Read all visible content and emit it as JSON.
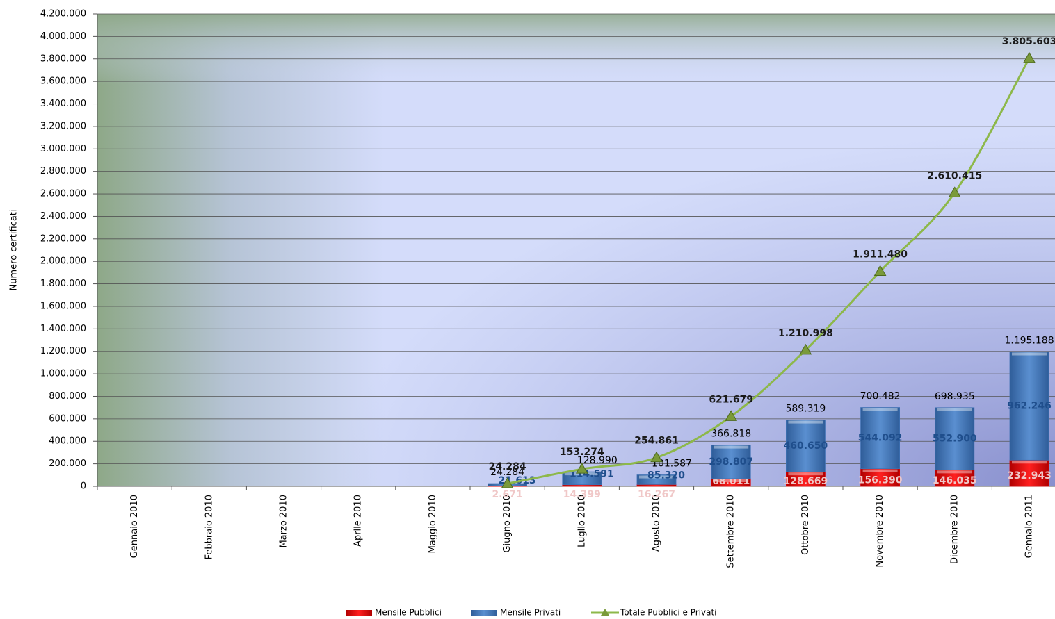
{
  "chart_data": {
    "type": "bar",
    "y_label": "Numero certificati",
    "categories": [
      "Gennaio 2010",
      "Febbraio 2010",
      "Marzo 2010",
      "Aprile 2010",
      "Maggio 2010",
      "Giugno 2010",
      "Luglio 2010",
      "Agosto 2010",
      "Settembre 2010",
      "Ottobre 2010",
      "Novembre 2010",
      "Dicembre 2010",
      "Gennaio 2011"
    ],
    "series": [
      {
        "name": "Mensile Pubblici",
        "color": "#e00000",
        "stacked": true,
        "values": [
          null,
          null,
          null,
          null,
          null,
          2671,
          14399,
          16267,
          68011,
          128669,
          156390,
          146035,
          232943
        ],
        "value_labels": [
          null,
          null,
          null,
          null,
          null,
          "2.671",
          "14.399",
          "16.267",
          "68.011",
          "128.669",
          "156.390",
          "146.035",
          "232.943"
        ]
      },
      {
        "name": "Mensile Privati",
        "color": "#3d70b2",
        "stacked": true,
        "values": [
          null,
          null,
          null,
          null,
          null,
          21613,
          114591,
          85320,
          298807,
          460650,
          544092,
          552900,
          962246
        ],
        "value_labels": [
          null,
          null,
          null,
          null,
          null,
          "21.613",
          "114.591",
          "85.320",
          "298.807",
          "460.650",
          "544.092",
          "552.900",
          "962.246"
        ]
      },
      {
        "name": "Totale Pubblici e Privati",
        "color": "#8db84a",
        "type": "line",
        "values": [
          null,
          null,
          null,
          null,
          null,
          24284,
          153274,
          254861,
          621679,
          1210998,
          1911480,
          2610415,
          3805603
        ],
        "value_labels": [
          null,
          null,
          null,
          null,
          null,
          "24.284",
          "153.274",
          "254.861",
          "621.679",
          "1.210.998",
          "1.911.480",
          "2.610.415",
          "3.805.603"
        ]
      }
    ],
    "bar_totals": {
      "values": [
        null,
        null,
        null,
        null,
        null,
        24284,
        128990,
        101587,
        366818,
        589319,
        700482,
        698935,
        1195188
      ],
      "value_labels": [
        null,
        null,
        null,
        null,
        null,
        "24.284",
        "128.990",
        "101.587",
        "366.818",
        "589.319",
        "700.482",
        "698.935",
        "1.195.188"
      ]
    },
    "ylim": [
      0,
      4200000
    ],
    "yticks": [
      0,
      {
        "value": 200000,
        "label": "200.000"
      },
      {
        "value": 400000,
        "label": "400.000"
      },
      {
        "value": 600000,
        "label": "600.000"
      },
      {
        "value": 800000,
        "label": "800.000"
      },
      {
        "value": 1000000,
        "label": "1.000.000"
      },
      {
        "value": 1200000,
        "label": "1.200.000"
      },
      {
        "value": 1400000,
        "label": "1.400.000"
      },
      {
        "value": 1600000,
        "label": "1.600.000"
      },
      {
        "value": 1800000,
        "label": "1.800.000"
      },
      {
        "value": 2000000,
        "label": "2.000.000"
      },
      {
        "value": 2200000,
        "label": "2.200.000"
      },
      {
        "value": 2400000,
        "label": "2.400.000"
      },
      {
        "value": 2600000,
        "label": "2.600.000"
      },
      {
        "value": 2800000,
        "label": "2.800.000"
      },
      {
        "value": 3000000,
        "label": "3.000.000"
      },
      {
        "value": 3200000,
        "label": "3.200.000"
      },
      {
        "value": 3400000,
        "label": "3.400.000"
      },
      {
        "value": 3600000,
        "label": "3.600.000"
      },
      {
        "value": 3800000,
        "label": "3.800.000"
      },
      {
        "value": 4000000,
        "label": "4.000.000"
      },
      {
        "value": 4200000,
        "label": "4.200.000"
      }
    ],
    "grid": true,
    "legend": "bottom"
  }
}
